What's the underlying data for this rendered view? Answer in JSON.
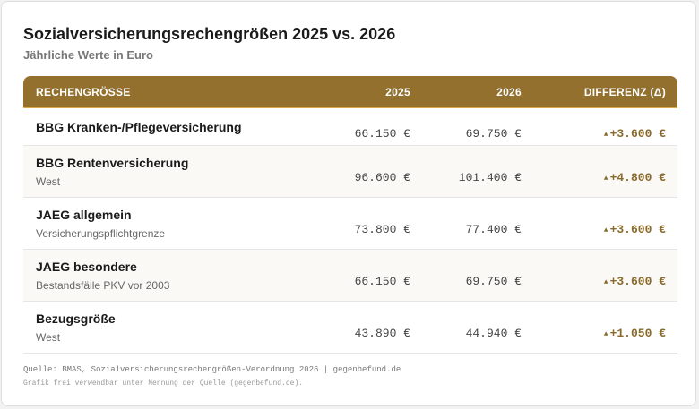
{
  "header": {
    "title": "Sozialversicherungsrechengrößen 2025 vs. 2026",
    "subtitle": "Jährliche Werte in Euro"
  },
  "table": {
    "columns": [
      "RECHENGRÖSSE",
      "2025",
      "2026",
      "DIFFERENZ (Δ)"
    ],
    "rows": [
      {
        "label": "BBG Kranken-/Pflegeversicherung",
        "v2025": "66.150 €",
        "v2026": "69.750 €",
        "diff": "+3.600 €"
      },
      {
        "label": "BBG Rentenversicherung",
        "sublabel": "West",
        "v2025": "96.600 €",
        "v2026": "101.400 €",
        "diff": "+4.800 €"
      },
      {
        "label": "JAEG allgemein",
        "sublabel": "Versicherungspflichtgrenze",
        "v2025": "73.800 €",
        "v2026": "77.400 €",
        "diff": "+3.600 €"
      },
      {
        "label": "JAEG besondere",
        "sublabel": "Bestandsfälle PKV vor 2003",
        "v2025": "66.150 €",
        "v2026": "69.750 €",
        "diff": "+3.600 €"
      },
      {
        "label": "Bezugsgröße",
        "sublabel": "West",
        "v2025": "43.890 €",
        "v2026": "44.940 €",
        "diff": "+1.050 €"
      }
    ]
  },
  "footer": {
    "source": "Quelle: BMAS, Sozialversicherungsrechengrößen-Verordnung 2026 | gegenbefund.de",
    "note": "Grafik frei verwendbar unter Nennung der Quelle (gegenbefund.de)."
  }
}
